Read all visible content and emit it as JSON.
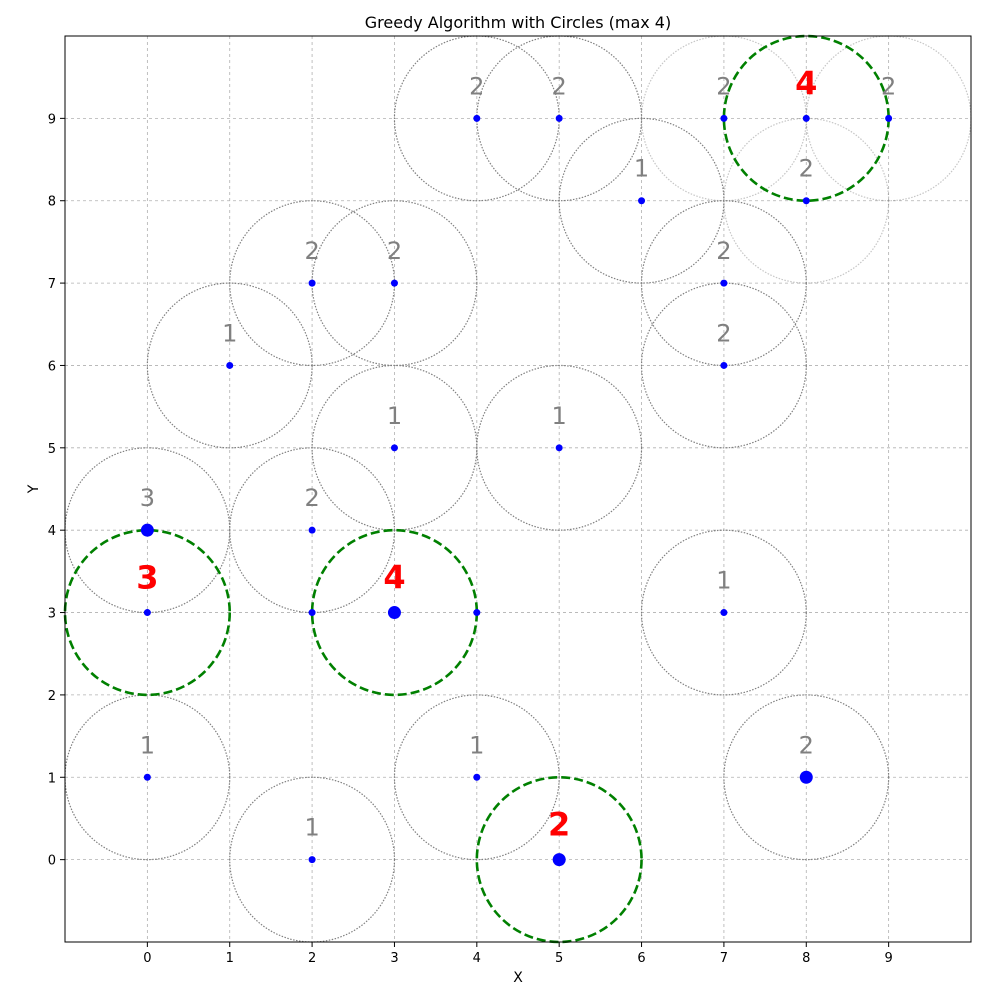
{
  "chart_data": {
    "type": "scatter",
    "title": "Greedy Algorithm with Circles (max 4)",
    "xlabel": "X",
    "ylabel": "Y",
    "xlim": [
      -1,
      10
    ],
    "ylim": [
      -1,
      10
    ],
    "xticks": [
      0,
      1,
      2,
      3,
      4,
      5,
      6,
      7,
      8,
      9
    ],
    "yticks": [
      0,
      1,
      2,
      3,
      4,
      5,
      6,
      7,
      8,
      9
    ],
    "grid": true,
    "circle_radius": 1,
    "colors": {
      "point": "#0000ff",
      "candidate_circle": "#808080",
      "selected_circle": "#008000",
      "candidate_label": "#808080",
      "selected_label": "#ff0000"
    },
    "points": [
      {
        "x": 4,
        "y": 9
      },
      {
        "x": 5,
        "y": 9
      },
      {
        "x": 7,
        "y": 9
      },
      {
        "x": 8,
        "y": 9
      },
      {
        "x": 9,
        "y": 9
      },
      {
        "x": 6,
        "y": 8
      },
      {
        "x": 8,
        "y": 8
      },
      {
        "x": 2,
        "y": 7
      },
      {
        "x": 3,
        "y": 7
      },
      {
        "x": 7,
        "y": 7
      },
      {
        "x": 1,
        "y": 6
      },
      {
        "x": 7,
        "y": 6
      },
      {
        "x": 3,
        "y": 5
      },
      {
        "x": 5,
        "y": 5
      },
      {
        "x": 0,
        "y": 4,
        "large": true
      },
      {
        "x": 2,
        "y": 4
      },
      {
        "x": 0,
        "y": 3
      },
      {
        "x": 2,
        "y": 3
      },
      {
        "x": 3,
        "y": 3,
        "large": true
      },
      {
        "x": 4,
        "y": 3
      },
      {
        "x": 7,
        "y": 3
      },
      {
        "x": 0,
        "y": 1
      },
      {
        "x": 4,
        "y": 1
      },
      {
        "x": 8,
        "y": 1,
        "large": true
      },
      {
        "x": 2,
        "y": 0
      },
      {
        "x": 5,
        "y": 0,
        "large": true
      }
    ],
    "candidate_circles": [
      {
        "x": 4,
        "y": 9,
        "count": "2"
      },
      {
        "x": 5,
        "y": 9,
        "count": "2"
      },
      {
        "x": 7,
        "y": 9,
        "count": "2",
        "faded": true
      },
      {
        "x": 9,
        "y": 9,
        "count": "2",
        "faded": true
      },
      {
        "x": 6,
        "y": 8,
        "count": "1"
      },
      {
        "x": 8,
        "y": 8,
        "count": "2",
        "faded": true
      },
      {
        "x": 2,
        "y": 7,
        "count": "2"
      },
      {
        "x": 3,
        "y": 7,
        "count": "2"
      },
      {
        "x": 7,
        "y": 7,
        "count": "2"
      },
      {
        "x": 1,
        "y": 6,
        "count": "1"
      },
      {
        "x": 7,
        "y": 6,
        "count": "2"
      },
      {
        "x": 3,
        "y": 5,
        "count": "1"
      },
      {
        "x": 5,
        "y": 5,
        "count": "1"
      },
      {
        "x": 0,
        "y": 4,
        "count": "3"
      },
      {
        "x": 2,
        "y": 4,
        "count": "2"
      },
      {
        "x": 7,
        "y": 3,
        "count": "1"
      },
      {
        "x": 0,
        "y": 1,
        "count": "1"
      },
      {
        "x": 4,
        "y": 1,
        "count": "1"
      },
      {
        "x": 8,
        "y": 1,
        "count": "2"
      },
      {
        "x": 2,
        "y": 0,
        "count": "1"
      }
    ],
    "selected_circles": [
      {
        "x": 8,
        "y": 9,
        "count": "4"
      },
      {
        "x": 0,
        "y": 3,
        "count": "3"
      },
      {
        "x": 3,
        "y": 3,
        "count": "4"
      },
      {
        "x": 5,
        "y": 0,
        "count": "2"
      }
    ]
  }
}
